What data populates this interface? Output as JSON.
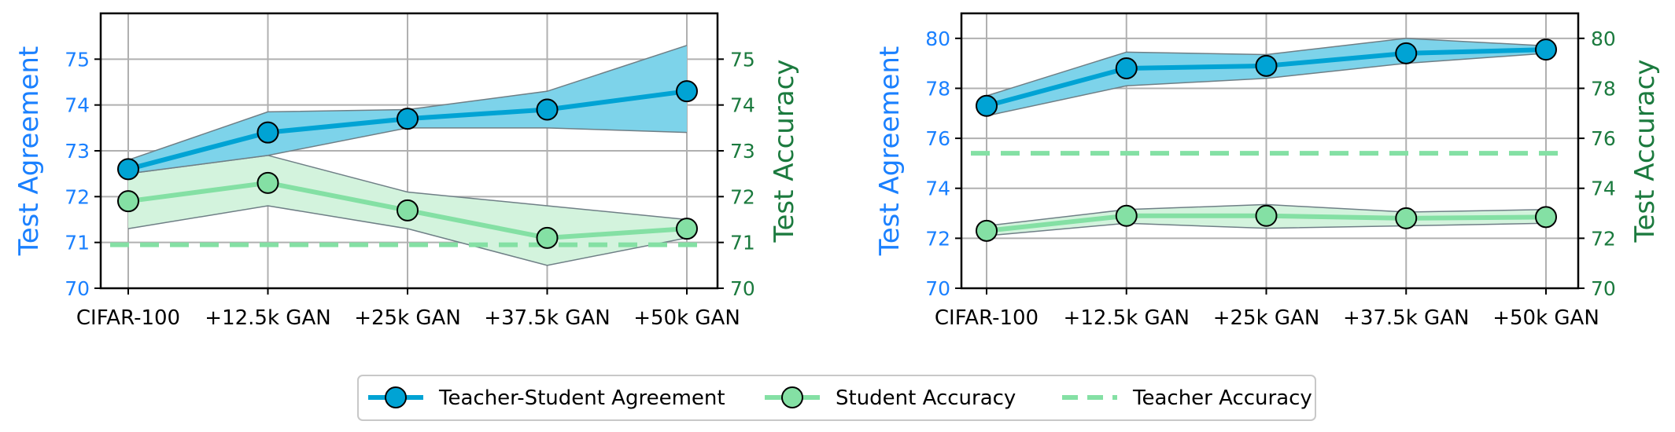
{
  "colors": {
    "agreement": "#00a3d4",
    "agreement_band": "#7dd3ea",
    "student": "#84e0a4",
    "student_band": "#d3f3dd",
    "teacher": "#84e0a4",
    "left_axis_text": "#1a80ff",
    "right_axis_text": "#1b7a3e",
    "band_edge": "#6f7f86"
  },
  "legend": {
    "agreement_label": "Teacher-Student Agreement",
    "student_label": "Student Accuracy",
    "teacher_label": "Teacher Accuracy"
  },
  "chart_data": [
    {
      "type": "line",
      "categories": [
        "CIFAR-100",
        "+12.5k GAN",
        "+25k GAN",
        "+37.5k GAN",
        "+50k GAN"
      ],
      "ylabel": "Test Agreement",
      "y2label": "Test Accuracy",
      "ylim": [
        70,
        76
      ],
      "y2lim": [
        70,
        76
      ],
      "yticks": [
        70,
        71,
        72,
        73,
        74,
        75
      ],
      "grid": true,
      "series": [
        {
          "name": "Teacher-Student Agreement",
          "axis": "left",
          "values": [
            72.6,
            73.4,
            73.7,
            73.9,
            74.3
          ],
          "band_low": [
            72.5,
            72.9,
            73.5,
            73.5,
            73.4
          ],
          "band_high": [
            72.8,
            73.85,
            73.9,
            74.3,
            75.3
          ]
        },
        {
          "name": "Student Accuracy",
          "axis": "right",
          "values": [
            71.9,
            72.3,
            71.7,
            71.1,
            71.3
          ],
          "band_low": [
            71.3,
            71.8,
            71.3,
            70.5,
            71.1
          ],
          "band_high": [
            72.5,
            72.9,
            72.1,
            71.8,
            71.5
          ]
        },
        {
          "name": "Teacher Accuracy",
          "axis": "right",
          "style": "dashed",
          "values": [
            70.95,
            70.95,
            70.95,
            70.95,
            70.95
          ]
        }
      ]
    },
    {
      "type": "line",
      "categories": [
        "CIFAR-100",
        "+12.5k GAN",
        "+25k GAN",
        "+37.5k GAN",
        "+50k GAN"
      ],
      "ylabel": "Test Agreement",
      "y2label": "Test Accuracy",
      "ylim": [
        70,
        81
      ],
      "y2lim": [
        70,
        81
      ],
      "yticks": [
        70,
        72,
        74,
        76,
        78,
        80
      ],
      "grid": true,
      "series": [
        {
          "name": "Teacher-Student Agreement",
          "axis": "left",
          "values": [
            77.3,
            78.8,
            78.9,
            79.4,
            79.55
          ],
          "band_low": [
            76.9,
            78.1,
            78.4,
            79.0,
            79.4
          ],
          "band_high": [
            77.7,
            79.45,
            79.35,
            80.0,
            79.7
          ]
        },
        {
          "name": "Student Accuracy",
          "axis": "right",
          "values": [
            72.3,
            72.9,
            72.9,
            72.8,
            72.85
          ],
          "band_low": [
            72.1,
            72.6,
            72.4,
            72.5,
            72.6
          ],
          "band_high": [
            72.5,
            73.15,
            73.35,
            73.05,
            73.15
          ]
        },
        {
          "name": "Teacher Accuracy",
          "axis": "right",
          "style": "dashed",
          "values": [
            75.4,
            75.4,
            75.4,
            75.4,
            75.4
          ]
        }
      ]
    }
  ]
}
